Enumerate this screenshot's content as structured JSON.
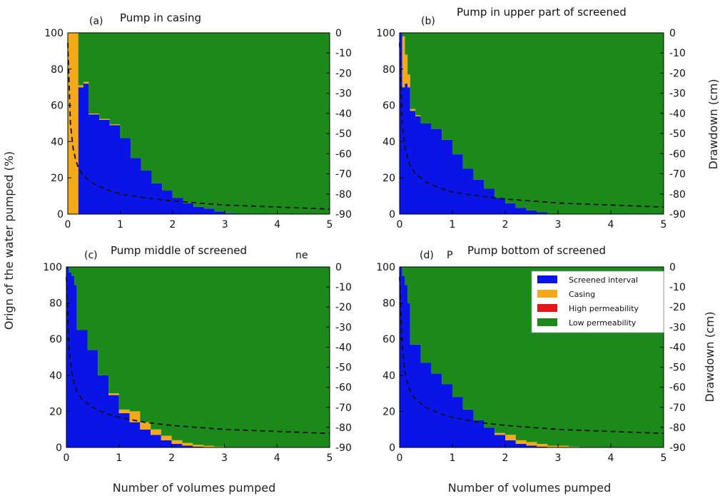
{
  "figure": {
    "xlabel": "Number of volumes pumped",
    "ylabel_left": "Orign of the water pumped (%)",
    "ylabel_right": "Drawdown (cm)",
    "colors": {
      "screened": "#0a14e6",
      "casing": "#f5a818",
      "high": "#e61414",
      "low": "#1b8a1b",
      "drawdown": "#111111"
    }
  },
  "chart_data": [
    {
      "type": "area",
      "panel_label": "(a)",
      "title": "Pump in casing",
      "xlim": [
        0,
        5
      ],
      "ylim_left": [
        0,
        100
      ],
      "ylim_right": [
        -90,
        0
      ],
      "x_ticks": [
        "0",
        "1",
        "2",
        "3",
        "4",
        "5"
      ],
      "y_ticks_left": [
        "0",
        "20",
        "40",
        "60",
        "80",
        "100"
      ],
      "y_ticks_right": [
        "0",
        "-10",
        "-20",
        "-30",
        "-40",
        "-50",
        "-60",
        "-70",
        "-80",
        "-90"
      ],
      "x": [
        0,
        0.1,
        0.2,
        0.3,
        0.4,
        0.6,
        0.8,
        1.0,
        1.2,
        1.4,
        1.6,
        1.8,
        2.0,
        2.2,
        2.4,
        2.6,
        2.8,
        3.0,
        3.2,
        5.0
      ],
      "series": [
        {
          "name": "Screened interval",
          "values": [
            0,
            0,
            70,
            72,
            55,
            52,
            49,
            42,
            31,
            24,
            17,
            13,
            9,
            6,
            4,
            3,
            1.5,
            0.5,
            0,
            0
          ]
        },
        {
          "name": "Casing",
          "values": [
            100,
            100,
            1,
            1,
            0.5,
            0.5,
            0.5,
            0,
            0,
            0,
            0,
            0,
            0,
            0,
            0,
            0,
            0,
            0,
            0,
            0
          ]
        },
        {
          "name": "High permeability",
          "values": [
            0,
            0,
            0,
            0,
            0,
            0,
            0,
            0,
            0,
            0,
            0,
            0,
            0,
            0,
            0,
            0,
            0,
            0,
            0,
            0
          ]
        },
        {
          "name": "Low permeability",
          "values": [
            0,
            0,
            29,
            27,
            44.5,
            47.5,
            50.5,
            58,
            69,
            76,
            83,
            87,
            91,
            94,
            96,
            97,
            98.5,
            99.5,
            100,
            100
          ]
        }
      ],
      "drawdown": {
        "x": [
          0,
          0.05,
          0.1,
          0.15,
          0.2,
          0.3,
          0.5,
          0.75,
          1.0,
          1.5,
          2.0,
          2.5,
          3.0,
          3.5,
          4.0,
          4.5,
          5.0
        ],
        "y": [
          -5,
          -45,
          -57,
          -63,
          -67,
          -71,
          -75,
          -78,
          -80,
          -82,
          -83.5,
          -84.5,
          -85.5,
          -86,
          -86.5,
          -87,
          -87.5
        ]
      }
    },
    {
      "type": "area",
      "panel_label": "(b)",
      "title": "Pump in upper part of screened",
      "xlim": [
        0,
        5
      ],
      "ylim_left": [
        0,
        100
      ],
      "ylim_right": [
        -90,
        0
      ],
      "x_ticks": [
        "0",
        "1",
        "2",
        "3",
        "4",
        "5"
      ],
      "y_ticks_left": [
        "0",
        "20",
        "40",
        "60",
        "80",
        "100"
      ],
      "y_ticks_right": [
        "0",
        "-10",
        "-20",
        "-30",
        "-40",
        "-50",
        "-60",
        "-70",
        "-80",
        "-90"
      ],
      "x": [
        0,
        0.05,
        0.1,
        0.15,
        0.2,
        0.3,
        0.4,
        0.6,
        0.8,
        1.0,
        1.2,
        1.4,
        1.6,
        1.8,
        2.0,
        2.2,
        2.4,
        2.6,
        2.8,
        5.0
      ],
      "series": [
        {
          "name": "Screened interval",
          "values": [
            100,
            70,
            72,
            70,
            57,
            54,
            50,
            47,
            41,
            33,
            25,
            19,
            14,
            9,
            6,
            3.5,
            2,
            1,
            0,
            0
          ]
        },
        {
          "name": "Casing",
          "values": [
            0,
            28,
            16,
            7,
            1,
            0.5,
            0,
            0,
            0,
            0,
            0,
            0,
            0,
            0,
            0,
            0,
            0,
            0,
            0,
            0
          ]
        },
        {
          "name": "High permeability",
          "values": [
            0,
            0,
            0,
            0,
            0,
            0,
            0,
            0,
            0,
            0,
            0,
            0,
            0,
            0,
            0,
            0,
            0,
            0,
            0,
            0
          ]
        },
        {
          "name": "Low permeability",
          "values": [
            0,
            2,
            12,
            23,
            42,
            45.5,
            50,
            53,
            59,
            67,
            75,
            81,
            86,
            91,
            94,
            96.5,
            98,
            99,
            100,
            100
          ]
        }
      ],
      "drawdown": {
        "x": [
          0,
          0.05,
          0.1,
          0.15,
          0.2,
          0.3,
          0.5,
          0.75,
          1.0,
          1.5,
          2.0,
          2.5,
          3.0,
          3.5,
          4.0,
          4.5,
          5.0
        ],
        "y": [
          -5,
          -45,
          -57,
          -62,
          -66,
          -70,
          -74,
          -77,
          -79,
          -81,
          -82.5,
          -83.5,
          -84.5,
          -85,
          -85.5,
          -86,
          -86.5
        ]
      }
    },
    {
      "type": "area",
      "panel_label": "(c)",
      "title": "Pump middle of screened",
      "title_fragment": "ne",
      "xlim": [
        0,
        5
      ],
      "ylim_left": [
        0,
        100
      ],
      "ylim_right": [
        -90,
        0
      ],
      "x_ticks": [
        "0",
        "1",
        "2",
        "3",
        "4",
        "5"
      ],
      "y_ticks_left": [
        "0",
        "20",
        "40",
        "60",
        "80",
        "100"
      ],
      "y_ticks_right": [
        "0",
        "-10",
        "-20",
        "-30",
        "-40",
        "-50",
        "-60",
        "-70",
        "-80",
        "-90"
      ],
      "x": [
        0,
        0.05,
        0.1,
        0.15,
        0.2,
        0.4,
        0.6,
        0.8,
        1.0,
        1.2,
        1.4,
        1.6,
        1.8,
        2.0,
        2.2,
        2.4,
        2.6,
        2.8,
        3.0,
        5.0
      ],
      "series": [
        {
          "name": "Screened interval",
          "values": [
            100,
            97,
            95,
            90,
            65,
            54,
            40,
            29,
            19,
            14,
            10,
            7,
            4,
            2,
            1,
            0.5,
            0,
            0,
            0,
            0
          ]
        },
        {
          "name": "Casing",
          "values": [
            0,
            0,
            0,
            0,
            0,
            0,
            0,
            1,
            2,
            6,
            4,
            3,
            2.5,
            2,
            1.5,
            1,
            1,
            0.5,
            0,
            0
          ]
        },
        {
          "name": "High permeability",
          "values": [
            0,
            0,
            0,
            0,
            0,
            0,
            0,
            0,
            0,
            0,
            0,
            0,
            0,
            0,
            0,
            0,
            0,
            0,
            0,
            0
          ]
        },
        {
          "name": "Low permeability",
          "values": [
            0,
            3,
            5,
            10,
            35,
            46,
            60,
            70,
            79,
            80,
            86,
            90,
            93.5,
            96,
            97.5,
            98.5,
            99,
            99.5,
            100,
            100
          ]
        }
      ],
      "drawdown": {
        "x": [
          0,
          0.05,
          0.1,
          0.15,
          0.2,
          0.3,
          0.5,
          0.75,
          1.0,
          1.5,
          2.0,
          2.5,
          3.0,
          3.5,
          4.0,
          4.5,
          5.0
        ],
        "y": [
          -5,
          -40,
          -52,
          -58,
          -62,
          -66,
          -70,
          -73,
          -75,
          -77.5,
          -79,
          -80,
          -81,
          -81.5,
          -82,
          -82.5,
          -83
        ]
      }
    },
    {
      "type": "area",
      "panel_label": "(d)",
      "panel_label_extra": "P",
      "title": "Pump bottom of screened",
      "xlim": [
        0,
        5
      ],
      "ylim_left": [
        0,
        100
      ],
      "ylim_right": [
        -90,
        0
      ],
      "x_ticks": [
        "0",
        "1",
        "2",
        "3",
        "4",
        "5"
      ],
      "y_ticks_left": [
        "0",
        "20",
        "40",
        "60",
        "80",
        "100"
      ],
      "y_ticks_right": [
        "0",
        "-10",
        "-20",
        "-30",
        "-40",
        "-50",
        "-60",
        "-70",
        "-80",
        "-90"
      ],
      "x": [
        0,
        0.05,
        0.1,
        0.15,
        0.2,
        0.4,
        0.6,
        0.8,
        1.0,
        1.2,
        1.4,
        1.6,
        1.8,
        2.0,
        2.2,
        2.4,
        2.6,
        2.8,
        3.0,
        3.2,
        3.4,
        5.0
      ],
      "series": [
        {
          "name": "Screened interval",
          "values": [
            100,
            95,
            90,
            80,
            57,
            47,
            41,
            35,
            28,
            21,
            15,
            11,
            7,
            4,
            2,
            1,
            0.5,
            0,
            0,
            0,
            0,
            0
          ]
        },
        {
          "name": "Casing",
          "values": [
            0,
            0,
            0,
            0,
            0,
            0,
            0,
            0,
            0,
            0,
            0,
            0,
            1,
            3,
            2,
            2,
            1.5,
            1,
            1,
            0.5,
            0,
            0
          ]
        },
        {
          "name": "High permeability",
          "values": [
            0,
            0,
            0,
            0,
            0,
            0,
            0,
            0,
            0,
            0,
            0,
            0,
            0,
            0,
            0,
            0,
            0,
            0,
            0,
            0,
            0,
            0
          ]
        },
        {
          "name": "Low permeability",
          "values": [
            0,
            5,
            10,
            20,
            43,
            53,
            59,
            65,
            72,
            79,
            85,
            89,
            92,
            93,
            96,
            97,
            98,
            99,
            99,
            99.5,
            100,
            100
          ]
        }
      ],
      "drawdown": {
        "x": [
          0,
          0.05,
          0.1,
          0.15,
          0.2,
          0.3,
          0.5,
          0.75,
          1.0,
          1.5,
          2.0,
          2.5,
          3.0,
          3.5,
          4.0,
          4.5,
          5.0
        ],
        "y": [
          -5,
          -40,
          -52,
          -58,
          -62,
          -66,
          -70,
          -73,
          -75,
          -77.5,
          -79,
          -80,
          -81,
          -81.5,
          -82,
          -82.5,
          -83
        ]
      }
    }
  ],
  "legend": {
    "items": [
      {
        "label": "Screened interval",
        "color": "#0a14e6"
      },
      {
        "label": "Casing",
        "color": "#f5a818"
      },
      {
        "label": "High permeability",
        "color": "#e61414"
      },
      {
        "label": "Low permeability",
        "color": "#1b8a1b"
      }
    ]
  }
}
